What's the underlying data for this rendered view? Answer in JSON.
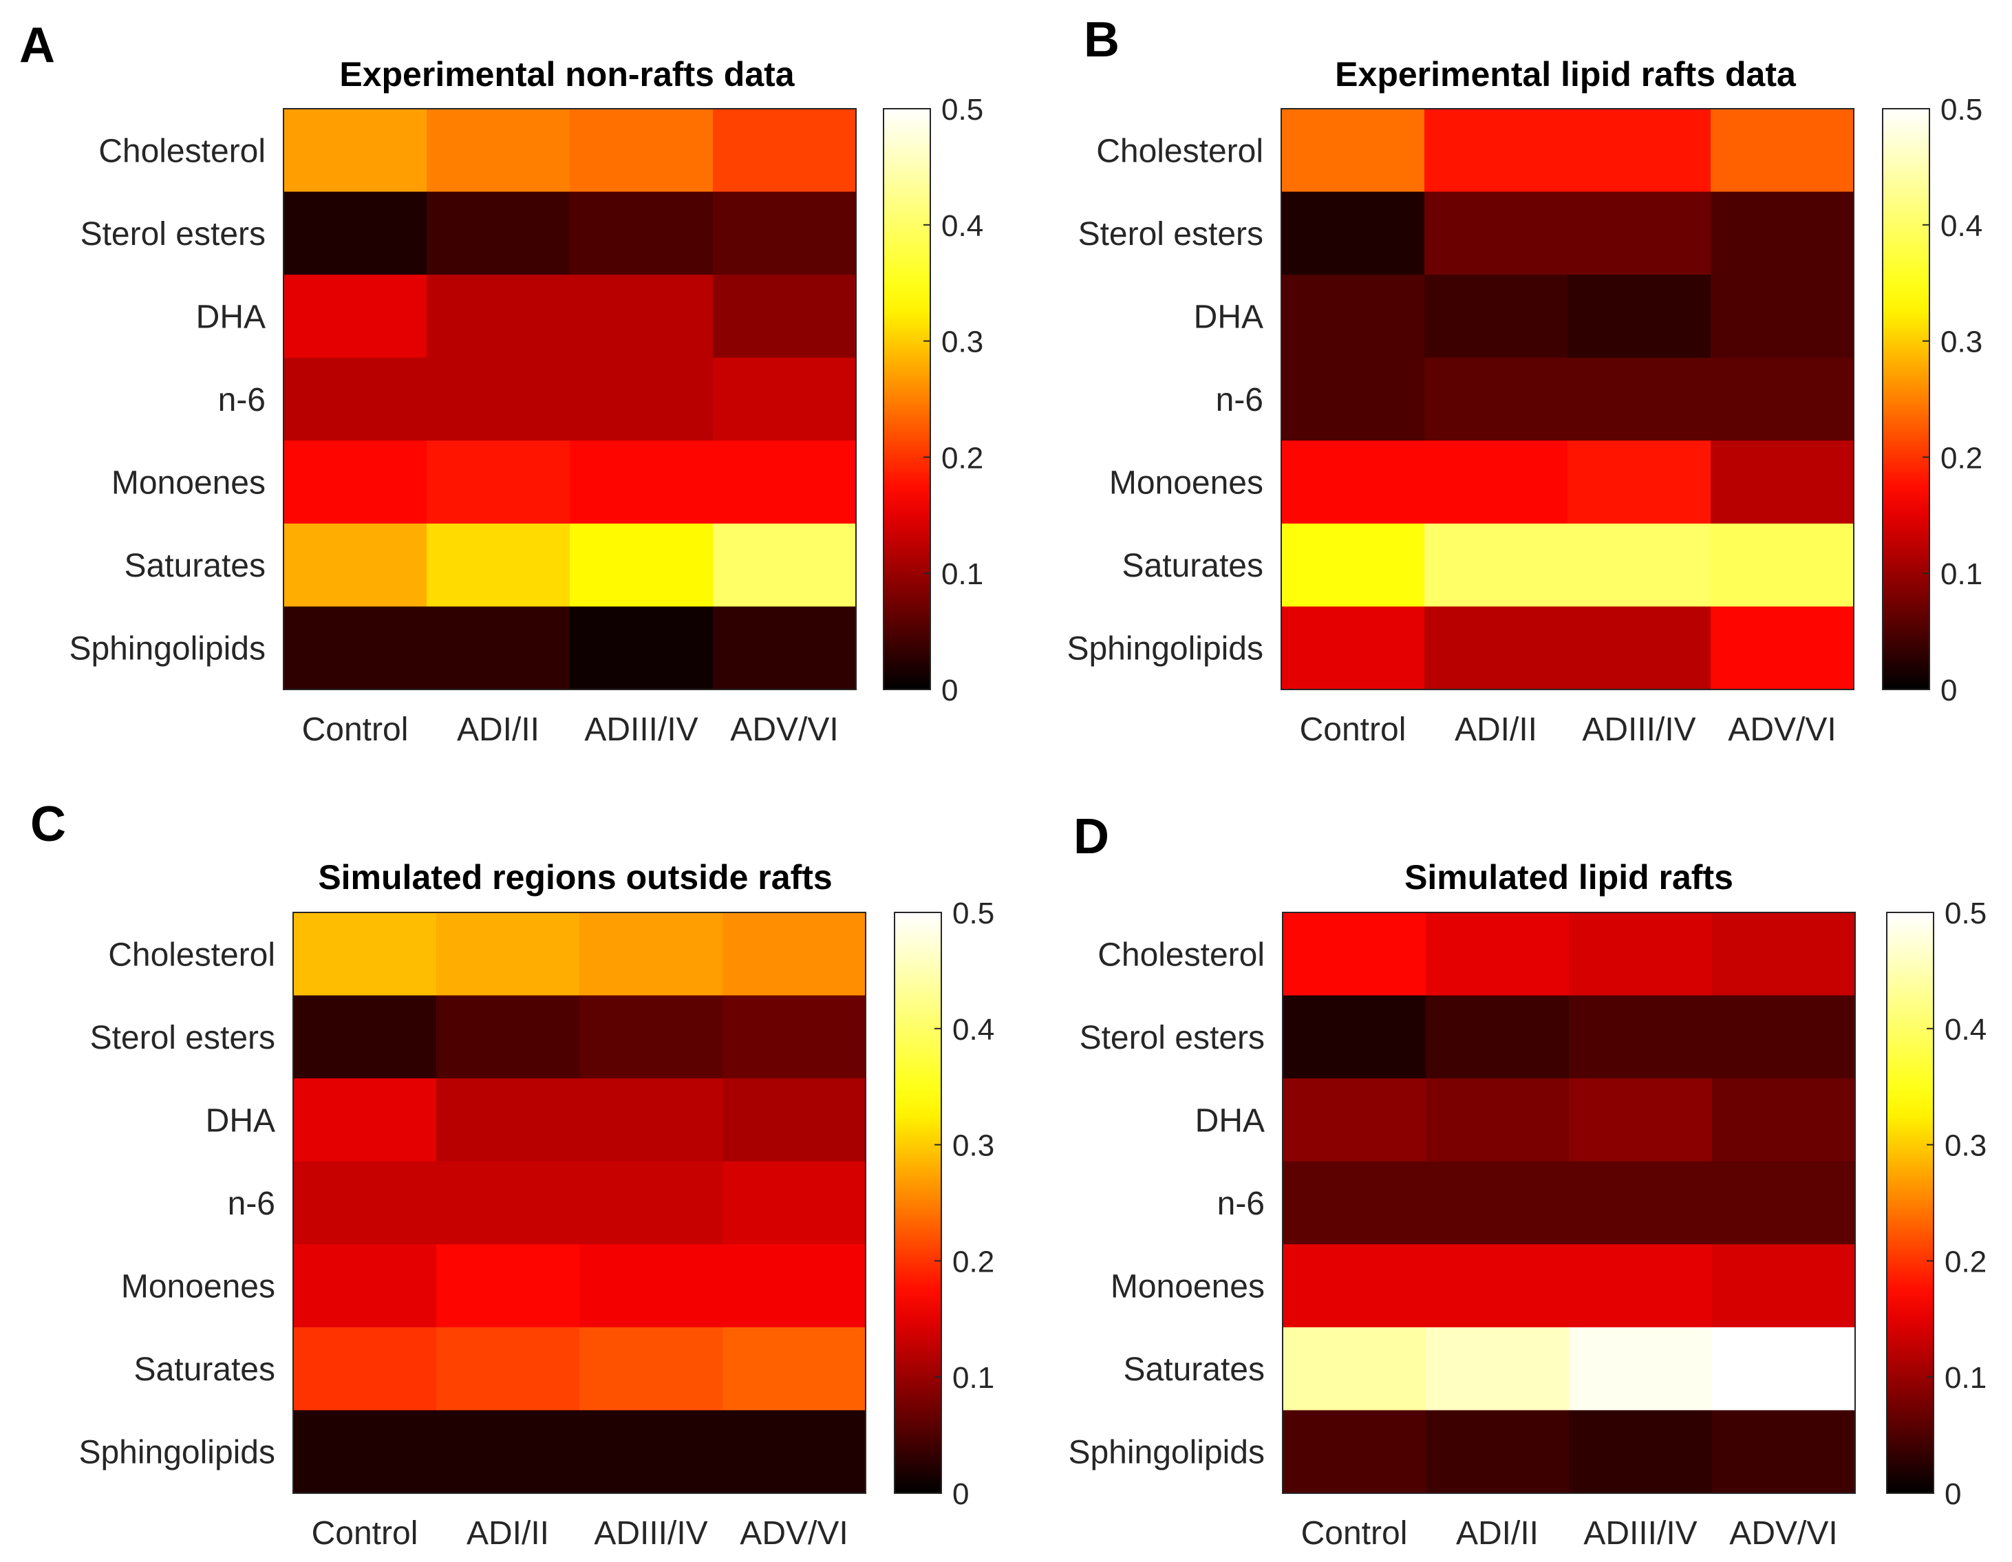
{
  "chart_data": [
    {
      "type": "heatmap",
      "panel": "A",
      "title": "Experimental non-rafts data",
      "rows": [
        "Cholesterol",
        "Sterol esters",
        "DHA",
        "n-6",
        "Monoenes",
        "Saturates",
        "Sphingolipids"
      ],
      "columns": [
        "Control",
        "ADI/II",
        "ADIII/IV",
        "ADV/VI"
      ],
      "values": [
        [
          0.27,
          0.25,
          0.24,
          0.21
        ],
        [
          0.02,
          0.04,
          0.05,
          0.06
        ],
        [
          0.15,
          0.12,
          0.12,
          0.09
        ],
        [
          0.12,
          0.12,
          0.12,
          0.13
        ],
        [
          0.17,
          0.18,
          0.17,
          0.17
        ],
        [
          0.28,
          0.31,
          0.33,
          0.4
        ],
        [
          0.03,
          0.03,
          0.01,
          0.03
        ]
      ],
      "colorbar": {
        "min": 0,
        "max": 0.5,
        "ticks": [
          "0",
          "0.1",
          "0.2",
          "0.3",
          "0.4",
          "0.5"
        ]
      }
    },
    {
      "type": "heatmap",
      "panel": "B",
      "title": "Experimental lipid rafts data",
      "rows": [
        "Cholesterol",
        "Sterol esters",
        "DHA",
        "n-6",
        "Monoenes",
        "Saturates",
        "Sphingolipids"
      ],
      "columns": [
        "Control",
        "ADI/II",
        "ADIII/IV",
        "ADV/VI"
      ],
      "values": [
        [
          0.24,
          0.18,
          0.18,
          0.23
        ],
        [
          0.02,
          0.07,
          0.07,
          0.05
        ],
        [
          0.05,
          0.04,
          0.03,
          0.05
        ],
        [
          0.05,
          0.06,
          0.06,
          0.06
        ],
        [
          0.17,
          0.17,
          0.18,
          0.12
        ],
        [
          0.34,
          0.4,
          0.4,
          0.39
        ],
        [
          0.15,
          0.12,
          0.12,
          0.17
        ]
      ],
      "colorbar": {
        "min": 0,
        "max": 0.5,
        "ticks": [
          "0",
          "0.1",
          "0.2",
          "0.3",
          "0.4",
          "0.5"
        ]
      }
    },
    {
      "type": "heatmap",
      "panel": "C",
      "title": "Simulated regions outside rafts",
      "rows": [
        "Cholesterol",
        "Sterol esters",
        "DHA",
        "n-6",
        "Monoenes",
        "Saturates",
        "Sphingolipids"
      ],
      "columns": [
        "Control",
        "ADI/II",
        "ADIII/IV",
        "ADV/VI"
      ],
      "values": [
        [
          0.29,
          0.28,
          0.27,
          0.26
        ],
        [
          0.03,
          0.05,
          0.06,
          0.07
        ],
        [
          0.15,
          0.12,
          0.12,
          0.11
        ],
        [
          0.13,
          0.13,
          0.13,
          0.14
        ],
        [
          0.15,
          0.17,
          0.16,
          0.16
        ],
        [
          0.2,
          0.21,
          0.22,
          0.23
        ],
        [
          0.02,
          0.02,
          0.02,
          0.02
        ]
      ],
      "colorbar": {
        "min": 0,
        "max": 0.5,
        "ticks": [
          "0",
          "0.1",
          "0.2",
          "0.3",
          "0.4",
          "0.5"
        ]
      }
    },
    {
      "type": "heatmap",
      "panel": "D",
      "title": "Simulated lipid rafts",
      "rows": [
        "Cholesterol",
        "Sterol esters",
        "DHA",
        "n-6",
        "Monoenes",
        "Saturates",
        "Sphingolipids"
      ],
      "columns": [
        "Control",
        "ADI/II",
        "ADIII/IV",
        "ADV/VI"
      ],
      "values": [
        [
          0.17,
          0.15,
          0.14,
          0.13
        ],
        [
          0.02,
          0.04,
          0.05,
          0.05
        ],
        [
          0.09,
          0.08,
          0.09,
          0.07
        ],
        [
          0.06,
          0.06,
          0.06,
          0.06
        ],
        [
          0.15,
          0.15,
          0.15,
          0.14
        ],
        [
          0.44,
          0.46,
          0.49,
          0.5
        ],
        [
          0.05,
          0.04,
          0.03,
          0.04
        ]
      ],
      "colorbar": {
        "min": 0,
        "max": 0.5,
        "ticks": [
          "0",
          "0.1",
          "0.2",
          "0.3",
          "0.4",
          "0.5"
        ]
      }
    }
  ]
}
